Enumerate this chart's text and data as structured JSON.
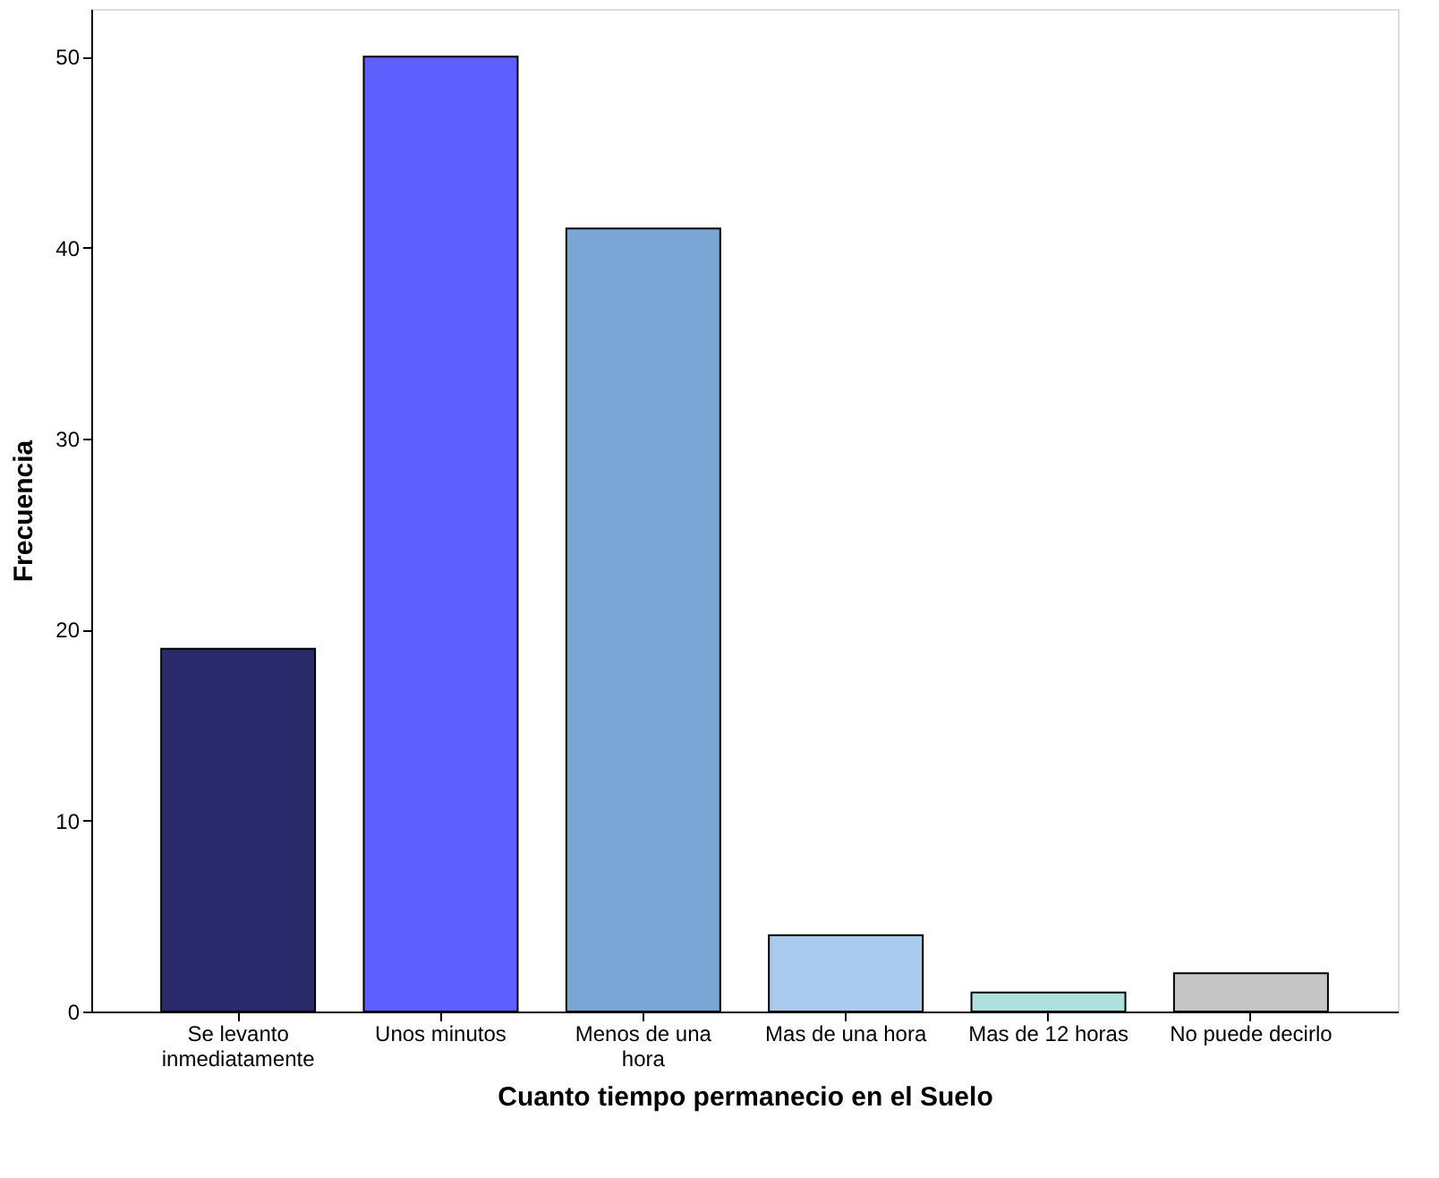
{
  "chart_data": {
    "type": "bar",
    "xlabel": "Cuanto tiempo permanecio en el Suelo",
    "ylabel": "Frecuencia",
    "categories": [
      "Se levanto inmediatamente",
      "Unos minutos",
      "Menos de una hora",
      "Mas de una hora",
      "Mas de 12 horas",
      "No puede decirlo"
    ],
    "values": [
      19,
      50,
      41,
      4,
      1,
      2
    ],
    "colors": [
      "#2b2a6c",
      "#5f5ffe",
      "#7aa6d5",
      "#a9cbee",
      "#ade0df",
      "#c6c6c6"
    ],
    "ylim": [
      0,
      52.5
    ],
    "yticks": [
      0,
      10,
      20,
      30,
      40,
      50
    ],
    "grid": false
  }
}
